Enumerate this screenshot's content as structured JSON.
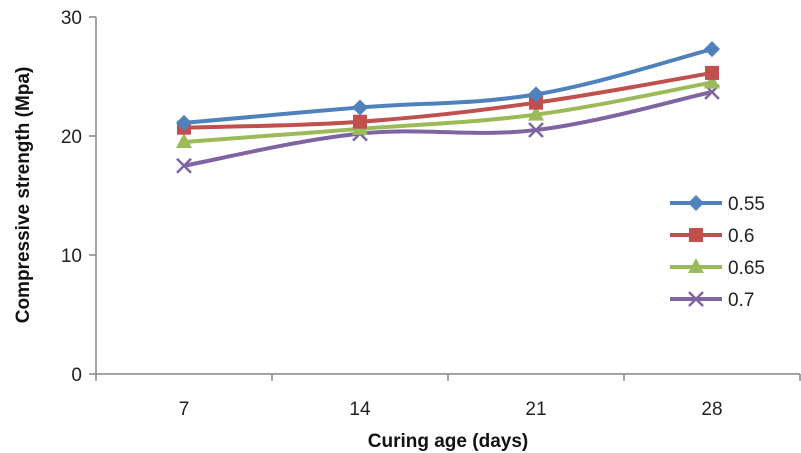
{
  "chart_data": {
    "type": "line",
    "title": "",
    "xlabel": "Curing age (days)",
    "ylabel": "Compressive strength (Mpa)",
    "categories": [
      "7",
      "14",
      "21",
      "28"
    ],
    "ylim": [
      0,
      30
    ],
    "yticks": [
      "0",
      "10",
      "20",
      "30"
    ],
    "grid": false,
    "legend_position": "right",
    "series": [
      {
        "name": "0.55",
        "values": [
          21.1,
          22.4,
          23.5,
          27.3
        ],
        "color": "#4F81BD",
        "marker": "diamond"
      },
      {
        "name": "0.6",
        "values": [
          20.7,
          21.2,
          22.8,
          25.3
        ],
        "color": "#C0504D",
        "marker": "square"
      },
      {
        "name": "0.65",
        "values": [
          19.5,
          20.6,
          21.8,
          24.5
        ],
        "color": "#9BBB59",
        "marker": "triangle"
      },
      {
        "name": "0.7",
        "values": [
          17.5,
          20.2,
          20.5,
          23.7
        ],
        "color": "#8064A2",
        "marker": "x"
      }
    ]
  }
}
